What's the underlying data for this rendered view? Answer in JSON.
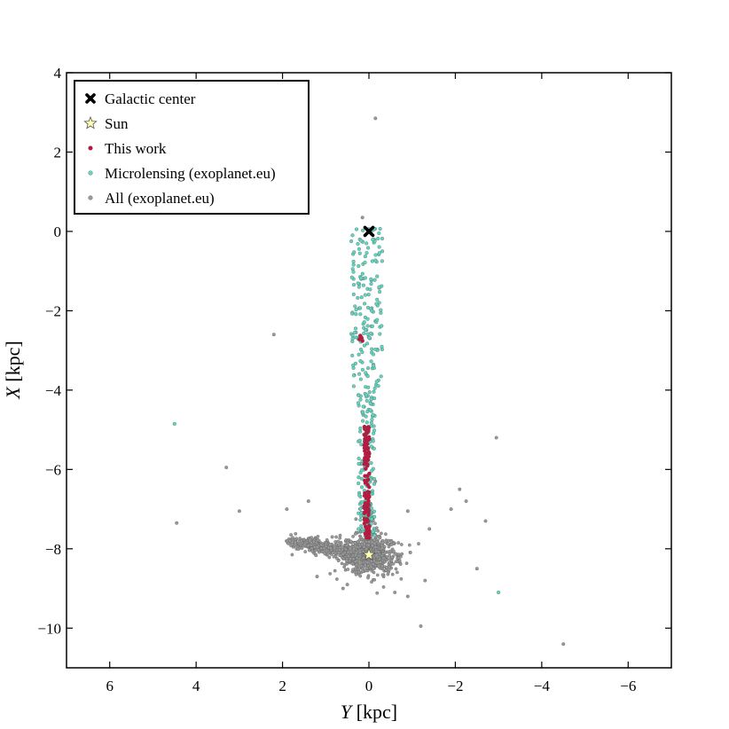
{
  "chart_data": {
    "type": "scatter",
    "xlabel": {
      "var": "Y",
      "unit": " [kpc]"
    },
    "ylabel": {
      "var": "X",
      "unit": " [kpc]"
    },
    "xlim": [
      7,
      -7
    ],
    "ylim": [
      -11,
      4
    ],
    "xticks": [
      6,
      4,
      2,
      0,
      -2,
      -4,
      -6
    ],
    "yticks": [
      4,
      2,
      0,
      -2,
      -4,
      -6,
      -8,
      -10
    ],
    "tick_labels_x": [
      "6",
      "4",
      "2",
      "0",
      "−2",
      "−4",
      "−6"
    ],
    "tick_labels_y": [
      "4",
      "2",
      "0",
      "−2",
      "−4",
      "−6",
      "−8",
      "−10"
    ],
    "grid": false,
    "legend_position": "top-left",
    "legend": [
      {
        "label": "Galactic center",
        "marker": "x-thick",
        "color": "#000000"
      },
      {
        "label": "Sun",
        "marker": "star",
        "color": "#ffffb0"
      },
      {
        "label": "This work",
        "marker": "dot",
        "color": "#c8103f"
      },
      {
        "label": "Microlensing (exoplanet.eu)",
        "marker": "dot",
        "color": "#5fd6c0"
      },
      {
        "label": "All (exoplanet.eu)",
        "marker": "dot",
        "color": "#999999"
      }
    ],
    "series": [
      {
        "name": "All (exoplanet.eu)",
        "color": "#999999",
        "points": [
          [
            -0.15,
            2.85
          ],
          [
            2.2,
            -2.6
          ],
          [
            -2.95,
            -5.2
          ],
          [
            3.3,
            -5.95
          ],
          [
            4.45,
            -7.35
          ],
          [
            3.0,
            -7.05
          ],
          [
            1.9,
            -7.0
          ],
          [
            1.4,
            -6.8
          ],
          [
            -2.1,
            -6.5
          ],
          [
            -2.25,
            -6.8
          ],
          [
            -2.7,
            -7.3
          ],
          [
            -1.9,
            -7.0
          ],
          [
            -2.5,
            -8.5
          ],
          [
            -1.2,
            -9.95
          ],
          [
            -4.5,
            -10.4
          ],
          [
            0.6,
            -9.0
          ],
          [
            0.15,
            0.35
          ],
          [
            -0.15,
            -6.3
          ],
          [
            -0.9,
            -7.05
          ],
          [
            0.3,
            -7.25
          ],
          [
            0.85,
            -7.7
          ],
          [
            -1.4,
            -7.5
          ],
          [
            1.2,
            -8.7
          ],
          [
            -1.3,
            -8.8
          ],
          [
            -0.9,
            -9.2
          ],
          [
            -0.6,
            -9.1
          ],
          [
            -0.1,
            -8.5
          ],
          [
            0.9,
            -7.9
          ],
          [
            0.5,
            -8.9
          ]
        ],
        "clouds": [
          {
            "center": [
              0.0,
              -8.15
            ],
            "spread": [
              0.55,
              0.4
            ],
            "count": 700
          },
          {
            "segment": [
              [
                1.9,
                -7.8
              ],
              [
                0.1,
                -8.15
              ]
            ],
            "width": 0.18,
            "count": 450
          },
          {
            "center": [
              0.0,
              -7.2
            ],
            "spread": [
              0.12,
              0.35
            ],
            "count": 40
          }
        ]
      },
      {
        "name": "Microlensing (exoplanet.eu)",
        "color": "#5fd6c0",
        "points": [
          [
            4.5,
            -4.85
          ],
          [
            -3.0,
            -9.1
          ]
        ],
        "band": {
          "y_center": 0.05,
          "y_spread": 0.36,
          "x_from": 0.1,
          "x_to": -7.7,
          "count": 330
        }
      },
      {
        "name": "This work",
        "color": "#c8103f",
        "points": [
          [
            0.2,
            -2.63
          ],
          [
            0.17,
            -2.68
          ],
          [
            0.22,
            -2.72
          ],
          [
            0.15,
            -2.76
          ]
        ],
        "band": {
          "y_center": 0.05,
          "y_spread": 0.06,
          "x_from": -4.9,
          "x_to": -7.75,
          "count": 120
        }
      },
      {
        "name": "Sun",
        "color": "#ffffb0",
        "points": [
          [
            0.0,
            -8.15
          ]
        ]
      },
      {
        "name": "Galactic center",
        "color": "#000000",
        "points": [
          [
            0.0,
            0.0
          ]
        ]
      }
    ]
  }
}
